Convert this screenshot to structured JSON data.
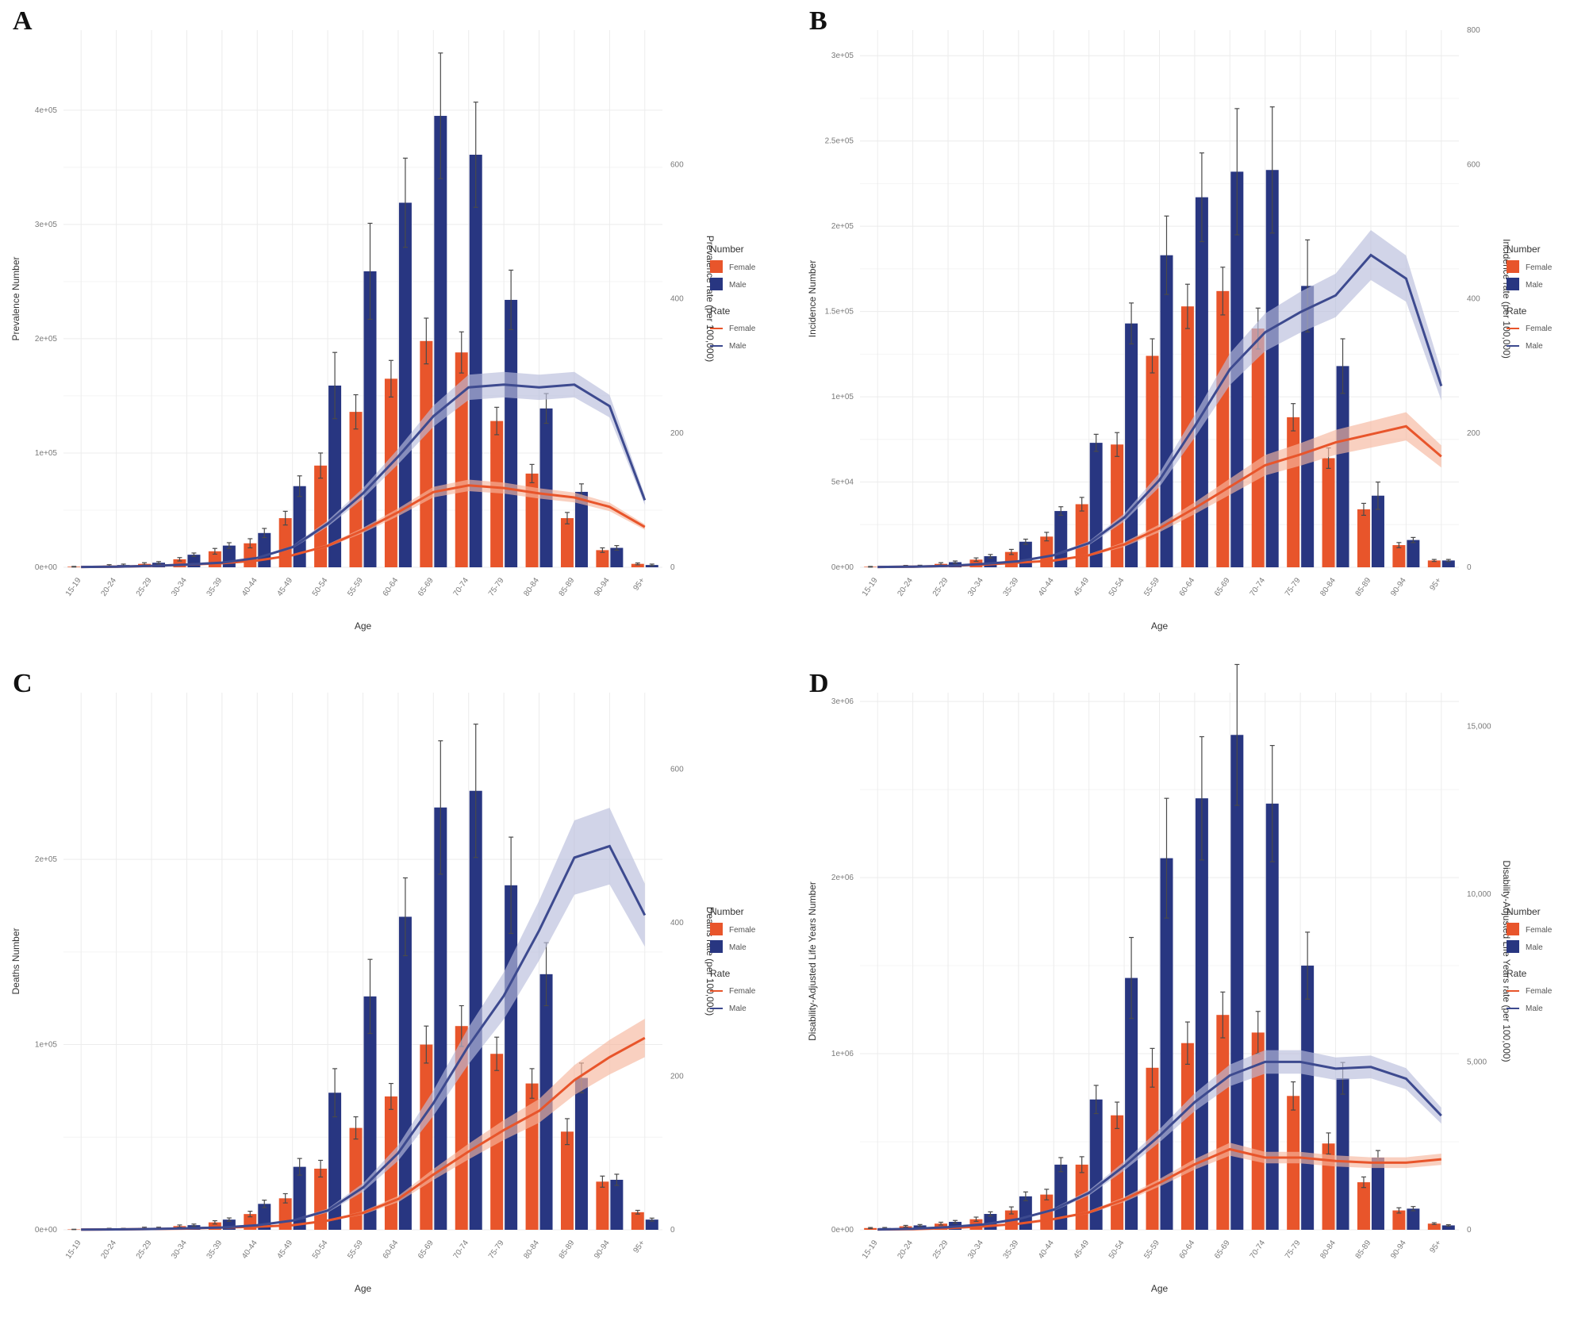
{
  "colors": {
    "female_bar": "#e8552b",
    "male_bar": "#283681",
    "female_line": "#e8552b",
    "male_line": "#3d4a8f",
    "female_ribbon": "#f6b79e",
    "male_ribbon": "#b9bddb",
    "error_bar": "#4a4a4a"
  },
  "legend": {
    "number_title": "Number",
    "rate_title": "Rate",
    "female": "Female",
    "male": "Male"
  },
  "chart_data": [
    {
      "panel": "A",
      "type": "bar",
      "xlabel": "Age",
      "ylabel": "Prevalence Number",
      "y2label": "Prevalence rate (per 100,000)",
      "categories": [
        "15-19",
        "20-24",
        "25-29",
        "30-34",
        "35-39",
        "40-44",
        "45-49",
        "50-54",
        "55-59",
        "60-64",
        "65-69",
        "70-74",
        "75-79",
        "80-84",
        "85-89",
        "90-94",
        "95+"
      ],
      "ylim": [
        0,
        470000
      ],
      "yticks": [
        0,
        100000,
        200000,
        300000,
        400000
      ],
      "ytick_labels": [
        "0e+00",
        "1e+05",
        "2e+05",
        "3e+05",
        "4e+05"
      ],
      "y2lim": [
        0,
        800
      ],
      "y2ticks": [
        0,
        200,
        400,
        600
      ],
      "y2tick_labels": [
        "0",
        "200",
        "400",
        "600"
      ],
      "number_series": [
        {
          "name": "Female",
          "values": [
            500,
            1500,
            3000,
            7000,
            14000,
            21000,
            43000,
            89000,
            136000,
            165000,
            198000,
            188000,
            128000,
            82000,
            43000,
            15000,
            3000
          ],
          "err": [
            300,
            800,
            1000,
            1500,
            2500,
            4000,
            6000,
            11000,
            15000,
            16000,
            20000,
            18000,
            12000,
            8000,
            5000,
            2000,
            800
          ]
        },
        {
          "name": "Male",
          "values": [
            500,
            2000,
            4000,
            11000,
            19000,
            30000,
            71000,
            159000,
            259000,
            319000,
            395000,
            361000,
            234000,
            139000,
            66000,
            17000,
            2000
          ],
          "err": [
            300,
            800,
            1000,
            1500,
            2500,
            4000,
            9000,
            29000,
            42000,
            39000,
            55000,
            46000,
            26000,
            13000,
            7000,
            2000,
            800
          ]
        }
      ],
      "rate_series": [
        {
          "name": "Female",
          "values": [
            0.5,
            1,
            2,
            4,
            6,
            10,
            18,
            32,
            55,
            82,
            112,
            122,
            118,
            110,
            104,
            90,
            60
          ],
          "err_pct": 0.07
        },
        {
          "name": "Male",
          "values": [
            0.5,
            1,
            2,
            4,
            7,
            14,
            30,
            65,
            110,
            165,
            225,
            268,
            272,
            268,
            272,
            240,
            100
          ],
          "err_pct": 0.07
        }
      ]
    },
    {
      "panel": "B",
      "type": "bar",
      "xlabel": "Age",
      "ylabel": "Incidence Number",
      "y2label": "Incidence rate (per 100,000)",
      "categories": [
        "15-19",
        "20-24",
        "25-29",
        "30-34",
        "35-39",
        "40-44",
        "45-49",
        "50-54",
        "55-59",
        "60-64",
        "65-69",
        "70-74",
        "75-79",
        "80-84",
        "85-89",
        "90-94",
        "95+"
      ],
      "ylim": [
        0,
        315000
      ],
      "yticks": [
        0,
        50000,
        100000,
        150000,
        200000,
        250000,
        300000
      ],
      "ytick_labels": [
        "0e+00",
        "5e+04",
        "1e+05",
        "1.5e+05",
        "2e+05",
        "2.5e+05",
        "3e+05"
      ],
      "y2lim": [
        0,
        800
      ],
      "y2ticks": [
        0,
        200,
        400,
        600,
        800
      ],
      "y2tick_labels": [
        "0",
        "200",
        "400",
        "600",
        "800"
      ],
      "number_series": [
        {
          "name": "Female",
          "values": [
            300,
            700,
            2000,
            4500,
            9000,
            18000,
            37000,
            72000,
            124000,
            153000,
            162000,
            140000,
            88000,
            64000,
            34000,
            13000,
            4000
          ],
          "err": [
            200,
            400,
            700,
            1000,
            1500,
            2500,
            4000,
            7000,
            10000,
            13000,
            14000,
            12000,
            8000,
            6000,
            3500,
            1500,
            600
          ]
        },
        {
          "name": "Male",
          "values": [
            300,
            800,
            3000,
            6500,
            15000,
            33000,
            73000,
            143000,
            183000,
            217000,
            232000,
            233000,
            165000,
            118000,
            42000,
            16000,
            4000
          ],
          "err": [
            200,
            400,
            700,
            1000,
            1500,
            2500,
            5000,
            12000,
            23000,
            26000,
            37000,
            37000,
            27000,
            16000,
            8000,
            1500,
            600
          ]
        }
      ],
      "rate_series": [
        {
          "name": "Female",
          "values": [
            0.5,
            1,
            2,
            4,
            7,
            10,
            18,
            34,
            58,
            88,
            120,
            152,
            168,
            186,
            198,
            210,
            165
          ],
          "err_pct": 0.1
        },
        {
          "name": "Male",
          "values": [
            0.5,
            1,
            2,
            5,
            9,
            18,
            36,
            74,
            130,
            210,
            295,
            350,
            380,
            405,
            465,
            430,
            270
          ],
          "err_pct": 0.08
        }
      ]
    },
    {
      "panel": "C",
      "type": "bar",
      "xlabel": "Age",
      "ylabel": "Deaths Number",
      "y2label": "Deaths rate (per 100,000)",
      "categories": [
        "15-19",
        "20-24",
        "25-29",
        "30-34",
        "35-39",
        "40-44",
        "45-49",
        "50-54",
        "55-59",
        "60-64",
        "65-69",
        "70-74",
        "75-79",
        "80-84",
        "85-89",
        "90-94",
        "95+"
      ],
      "ylim": [
        0,
        290000
      ],
      "yticks": [
        0,
        100000,
        200000
      ],
      "ytick_labels": [
        "0e+00",
        "1e+05",
        "2e+05"
      ],
      "y2lim": [
        0,
        700
      ],
      "y2ticks": [
        0,
        200,
        400,
        600
      ],
      "y2tick_labels": [
        "0",
        "200",
        "400",
        "600"
      ],
      "number_series": [
        {
          "name": "Female",
          "values": [
            200,
            500,
            1000,
            2000,
            4000,
            8500,
            17000,
            33000,
            55000,
            72000,
            100000,
            110000,
            95000,
            79000,
            53000,
            26000,
            9500
          ],
          "err": [
            100,
            300,
            400,
            600,
            900,
            1500,
            2500,
            4500,
            6000,
            7000,
            10000,
            11000,
            9000,
            8000,
            7000,
            3000,
            1000
          ]
        },
        {
          "name": "Male",
          "values": [
            200,
            500,
            1000,
            2500,
            5500,
            14000,
            34000,
            74000,
            126000,
            169000,
            228000,
            237000,
            186000,
            138000,
            82000,
            27000,
            5500
          ],
          "err": [
            100,
            300,
            400,
            600,
            900,
            2000,
            4500,
            13000,
            20000,
            21000,
            36000,
            36000,
            26000,
            17000,
            8000,
            3000,
            800
          ]
        }
      ],
      "rate_series": [
        {
          "name": "Female",
          "values": [
            0.2,
            0.5,
            1,
            1.5,
            3,
            4,
            6,
            12,
            22,
            40,
            72,
            102,
            130,
            155,
            195,
            225,
            250
          ],
          "err_pct": 0.1
        },
        {
          "name": "Male",
          "values": [
            0.2,
            0.5,
            1,
            2,
            3,
            6,
            12,
            25,
            55,
            100,
            165,
            240,
            305,
            390,
            485,
            500,
            410
          ],
          "err_pct": 0.1
        }
      ]
    },
    {
      "panel": "D",
      "type": "bar",
      "xlabel": "Age",
      "ylabel": "Disability-Adjusted Life Years Number",
      "y2label": "Disability-Adjusted Life Years rate (per 100,000)",
      "categories": [
        "15-19",
        "20-24",
        "25-29",
        "30-34",
        "35-39",
        "40-44",
        "45-49",
        "50-54",
        "55-59",
        "60-64",
        "65-69",
        "70-74",
        "75-79",
        "80-84",
        "85-89",
        "90-94",
        "95+"
      ],
      "ylim": [
        0,
        3050000
      ],
      "yticks": [
        0,
        1000000,
        2000000,
        3000000
      ],
      "ytick_labels": [
        "0e+00",
        "1e+06",
        "2e+06",
        "3e+06"
      ],
      "y2lim": [
        0,
        16000
      ],
      "y2ticks": [
        0,
        5000,
        10000,
        15000
      ],
      "y2tick_labels": [
        "0",
        "5,000",
        "10,000",
        "15,000"
      ],
      "number_series": [
        {
          "name": "Female",
          "values": [
            10000,
            20000,
            35000,
            60000,
            110000,
            200000,
            370000,
            650000,
            920000,
            1060000,
            1220000,
            1120000,
            760000,
            490000,
            270000,
            110000,
            35000
          ],
          "err": [
            3000,
            5000,
            8000,
            12000,
            20000,
            30000,
            45000,
            75000,
            110000,
            120000,
            130000,
            120000,
            80000,
            60000,
            30000,
            15000,
            5000
          ]
        },
        {
          "name": "Male",
          "values": [
            10000,
            25000,
            45000,
            90000,
            190000,
            370000,
            740000,
            1430000,
            2110000,
            2450000,
            2810000,
            2420000,
            1500000,
            860000,
            410000,
            120000,
            25000
          ],
          "err": [
            3000,
            5000,
            8000,
            12000,
            25000,
            40000,
            80000,
            230000,
            340000,
            350000,
            400000,
            330000,
            190000,
            90000,
            40000,
            12000,
            4000
          ]
        }
      ],
      "rate_series": [
        {
          "name": "Female",
          "values": [
            10,
            20,
            50,
            100,
            180,
            320,
            520,
            900,
            1400,
            1950,
            2400,
            2150,
            2150,
            2050,
            2000,
            2000,
            2100
          ],
          "err_pct": 0.08
        },
        {
          "name": "Male",
          "values": [
            10,
            30,
            80,
            160,
            320,
            600,
            1100,
            1900,
            2800,
            3800,
            4600,
            5000,
            5000,
            4800,
            4850,
            4500,
            3400
          ],
          "err_pct": 0.07
        }
      ]
    }
  ]
}
